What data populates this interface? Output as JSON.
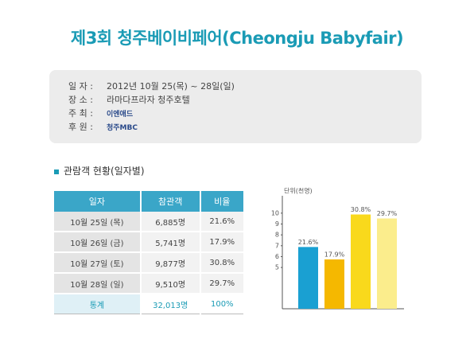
{
  "title": "제3회 청주베이비페어(Cheongju Babyfair)",
  "info": {
    "rows": [
      {
        "label": "일 자 :",
        "value": "2012년 10월 25(목) ~ 28일(일)"
      },
      {
        "label": "장 소 :",
        "value": "라마다프라자 청주호텔"
      },
      {
        "label": "주 최 :",
        "value": "이엔애드"
      },
      {
        "label": "후 원 :",
        "value": "청주MBC"
      }
    ]
  },
  "section": "관람객 현황(일자별)",
  "table": {
    "header": [
      "일자",
      "참관객",
      "비율"
    ],
    "rows": [
      [
        "10월 25일 (목)",
        "6,885명",
        "21.6%"
      ],
      [
        "10월 26일 (금)",
        "5,741명",
        "17.9%"
      ],
      [
        "10월 27일 (토)",
        "9,877명",
        "30.8%"
      ],
      [
        "10월 28일 (일)",
        "9,510명",
        "29.7%"
      ]
    ],
    "total": [
      "통계",
      "32,013명",
      "100%"
    ]
  },
  "chart_data": {
    "type": "bar",
    "y_label": "단위(천명)",
    "categories": [
      null,
      null,
      null,
      null
    ],
    "values": [
      6.885,
      5.741,
      9.877,
      9.51
    ],
    "annotations": [
      "21.6%",
      "17.9%",
      "30.8%",
      "29.7%"
    ],
    "colors": [
      "#1aa0d2",
      "#f5b800",
      "#f9d91c",
      "#fbed8c"
    ],
    "ylim": [
      1.2,
      11.6
    ],
    "yticks": [
      5,
      6,
      7,
      8,
      9,
      10
    ]
  }
}
